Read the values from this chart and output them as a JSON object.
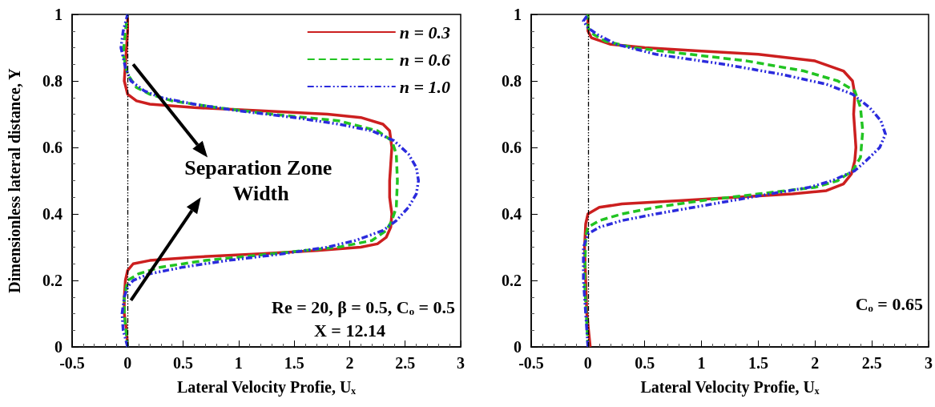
{
  "chart_data": [
    {
      "type": "line",
      "ylabel": "Dimensionless lateral distance, Y",
      "xlabel": "Lateral Velocity Profie, Uₓ",
      "xlim": [
        -0.5,
        3
      ],
      "xticks": [
        -0.5,
        0,
        0.5,
        1,
        1.5,
        2,
        2.5,
        3
      ],
      "ylim": [
        0,
        1
      ],
      "yticks": [
        0,
        0.2,
        0.4,
        0.6,
        0.8,
        1
      ],
      "grid": false,
      "legend": "top right",
      "marker": "none",
      "ref_lines": [
        {
          "axis": "x",
          "value": 0,
          "color": "#000000",
          "line_style": "dashed"
        }
      ],
      "annotations": [
        "Separation Zone Width",
        "Re = 20, β = 0.5, Cₒ = 0.5",
        "X = 12.14"
      ],
      "series": [
        {
          "name": "n = 0.3",
          "color": "#cc1f1f",
          "line_style": "solid",
          "x": [
            0,
            -0.01,
            -0.03,
            -0.03,
            -0.02,
            0,
            0.05,
            0.2,
            0.6,
            1.2,
            1.7,
            2.1,
            2.25,
            2.33,
            2.37,
            2.38,
            2.36,
            2.36,
            2.37,
            2.38,
            2.36,
            2.3,
            2.1,
            1.8,
            1.2,
            0.6,
            0.2,
            0.08,
            0,
            -0.03,
            -0.02,
            -0.01,
            0,
            0
          ],
          "values": [
            0,
            0.05,
            0.1,
            0.15,
            0.2,
            0.23,
            0.25,
            0.26,
            0.27,
            0.28,
            0.29,
            0.3,
            0.31,
            0.33,
            0.36,
            0.4,
            0.45,
            0.5,
            0.55,
            0.6,
            0.65,
            0.67,
            0.69,
            0.7,
            0.71,
            0.72,
            0.73,
            0.74,
            0.76,
            0.8,
            0.85,
            0.9,
            0.95,
            1
          ]
        },
        {
          "name": "n = 0.6",
          "color": "#22c422",
          "line_style": "dashed",
          "x": [
            0,
            -0.03,
            -0.03,
            0,
            0.1,
            0.3,
            0.7,
            1.3,
            1.9,
            2.2,
            2.33,
            2.38,
            2.42,
            2.43,
            2.42,
            2.38,
            2.25,
            1.9,
            1.3,
            0.8,
            0.4,
            0.2,
            0.08,
            0,
            -0.04,
            -0.02,
            0
          ],
          "values": [
            0,
            0.1,
            0.15,
            0.2,
            0.22,
            0.24,
            0.26,
            0.28,
            0.3,
            0.32,
            0.35,
            0.38,
            0.42,
            0.5,
            0.58,
            0.62,
            0.65,
            0.68,
            0.7,
            0.72,
            0.74,
            0.76,
            0.78,
            0.82,
            0.88,
            0.95,
            1
          ]
        },
        {
          "name": "n = 1.0",
          "color": "#2b2bdd",
          "line_style": "dotted",
          "x": [
            0,
            -0.04,
            -0.05,
            -0.03,
            0,
            0.05,
            0.2,
            0.5,
            0.9,
            1.4,
            1.8,
            2.05,
            2.3,
            2.42,
            2.53,
            2.6,
            2.62,
            2.6,
            2.53,
            2.4,
            2.2,
            1.9,
            1.5,
            1,
            0.6,
            0.3,
            0.15,
            0.03,
            -0.02,
            -0.06,
            -0.04,
            0
          ],
          "values": [
            0,
            0.05,
            0.1,
            0.15,
            0.18,
            0.2,
            0.22,
            0.24,
            0.26,
            0.28,
            0.3,
            0.32,
            0.35,
            0.38,
            0.42,
            0.46,
            0.5,
            0.54,
            0.58,
            0.62,
            0.65,
            0.67,
            0.69,
            0.71,
            0.73,
            0.75,
            0.77,
            0.8,
            0.84,
            0.9,
            0.95,
            1
          ]
        }
      ]
    },
    {
      "type": "line",
      "xlabel": "Lateral Velocity Profie, Uₓ",
      "xlim": [
        -0.5,
        3
      ],
      "xticks": [
        -0.5,
        0,
        0.5,
        1,
        1.5,
        2,
        2.5,
        3
      ],
      "ylim": [
        0,
        1
      ],
      "yticks": [
        0,
        0.2,
        0.4,
        0.6,
        0.8,
        1
      ],
      "grid": false,
      "legend": false,
      "marker": "none",
      "ref_lines": [
        {
          "axis": "x",
          "value": 0,
          "color": "#000000",
          "line_style": "dashed"
        }
      ],
      "annotations": [
        "Cₒ = 0.65"
      ],
      "series": [
        {
          "color": "#cc1f1f",
          "line_style": "solid",
          "x": [
            0.02,
            -0.01,
            -0.02,
            -0.03,
            -0.02,
            0,
            0.1,
            0.3,
            0.8,
            1.3,
            1.8,
            2.1,
            2.25,
            2.32,
            2.35,
            2.36,
            2.35,
            2.34,
            2.35,
            2.33,
            2.25,
            2,
            1.5,
            1,
            0.5,
            0.2,
            0.03,
            0,
            0
          ],
          "values": [
            0,
            0.1,
            0.2,
            0.3,
            0.37,
            0.4,
            0.42,
            0.43,
            0.44,
            0.45,
            0.46,
            0.47,
            0.49,
            0.52,
            0.56,
            0.6,
            0.65,
            0.7,
            0.76,
            0.8,
            0.83,
            0.86,
            0.88,
            0.89,
            0.9,
            0.91,
            0.93,
            0.95,
            1
          ]
        },
        {
          "color": "#22c422",
          "line_style": "dashed",
          "x": [
            0,
            -0.03,
            -0.02,
            0,
            0.1,
            0.3,
            0.6,
            1,
            1.5,
            2,
            2.2,
            2.33,
            2.4,
            2.42,
            2.4,
            2.35,
            2.2,
            1.9,
            1.4,
            0.9,
            0.4,
            0.15,
            0.05,
            0,
            0
          ],
          "values": [
            0,
            0.2,
            0.33,
            0.36,
            0.38,
            0.4,
            0.42,
            0.44,
            0.46,
            0.48,
            0.5,
            0.53,
            0.57,
            0.65,
            0.72,
            0.77,
            0.8,
            0.83,
            0.86,
            0.88,
            0.9,
            0.92,
            0.94,
            0.96,
            1
          ]
        },
        {
          "color": "#2b2bdd",
          "line_style": "dotted",
          "x": [
            0,
            -0.04,
            -0.04,
            0,
            0.1,
            0.3,
            0.6,
            1.1,
            1.6,
            1.95,
            2.15,
            2.35,
            2.45,
            2.57,
            2.62,
            2.58,
            2.48,
            2.33,
            2.1,
            1.7,
            1.2,
            0.6,
            0.25,
            0.08,
            0,
            -0.04,
            0
          ],
          "values": [
            0,
            0.2,
            0.3,
            0.34,
            0.36,
            0.38,
            0.4,
            0.43,
            0.46,
            0.48,
            0.5,
            0.53,
            0.56,
            0.6,
            0.64,
            0.68,
            0.72,
            0.76,
            0.79,
            0.82,
            0.85,
            0.88,
            0.91,
            0.94,
            0.96,
            0.98,
            1
          ]
        }
      ]
    }
  ]
}
